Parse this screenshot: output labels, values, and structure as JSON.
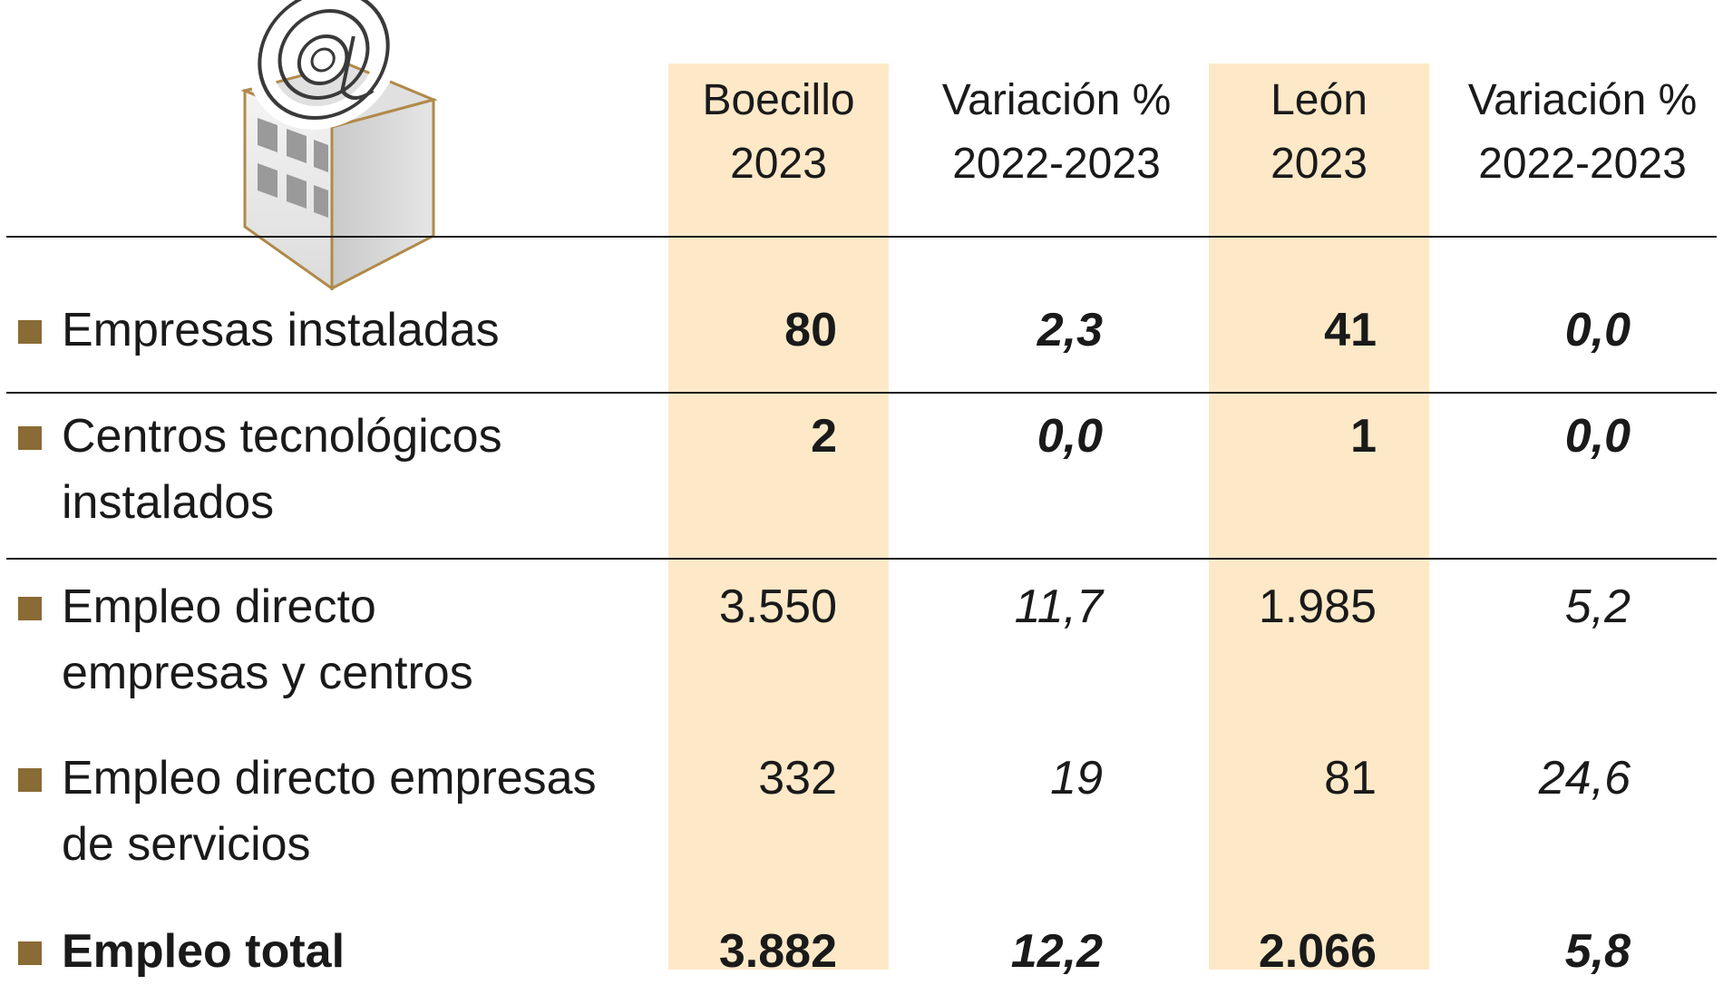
{
  "chart_data": {
    "type": "table",
    "columns": [
      {
        "line1": "Boecillo",
        "line2": "2023"
      },
      {
        "line1": "Variación %",
        "line2": "2022-2023"
      },
      {
        "line1": "León",
        "line2": "2023"
      },
      {
        "line1": "Variación %",
        "line2": "2022-2023"
      }
    ],
    "rows": [
      {
        "label": [
          "Empresas instaladas"
        ],
        "values": [
          "80",
          "2,3",
          "41",
          "0,0"
        ],
        "style": "bold"
      },
      {
        "label": [
          "Centros tecnológicos",
          "instalados"
        ],
        "values": [
          "2",
          "0,0",
          "1",
          "0,0"
        ],
        "style": "bold"
      },
      {
        "label": [
          "Empleo directo",
          "empresas y centros"
        ],
        "values": [
          "3.550",
          "11,7",
          "1.985",
          "5,2"
        ],
        "style": "normal"
      },
      {
        "label": [
          "Empleo directo empresas",
          "de servicios"
        ],
        "values": [
          "332",
          "19",
          "81",
          "24,6"
        ],
        "style": "normal"
      },
      {
        "label": [
          "Empleo total"
        ],
        "values": [
          "3.882",
          "12,2",
          "2.066",
          "5,8"
        ],
        "style": "bold-label"
      }
    ]
  },
  "colors": {
    "highlight_band": "#fde9c8",
    "bullet": "#8a6a35",
    "rule": "#1a1a1a",
    "text": "#1a1a1a"
  },
  "icons": {
    "logo": "at-sign-building-icon"
  }
}
